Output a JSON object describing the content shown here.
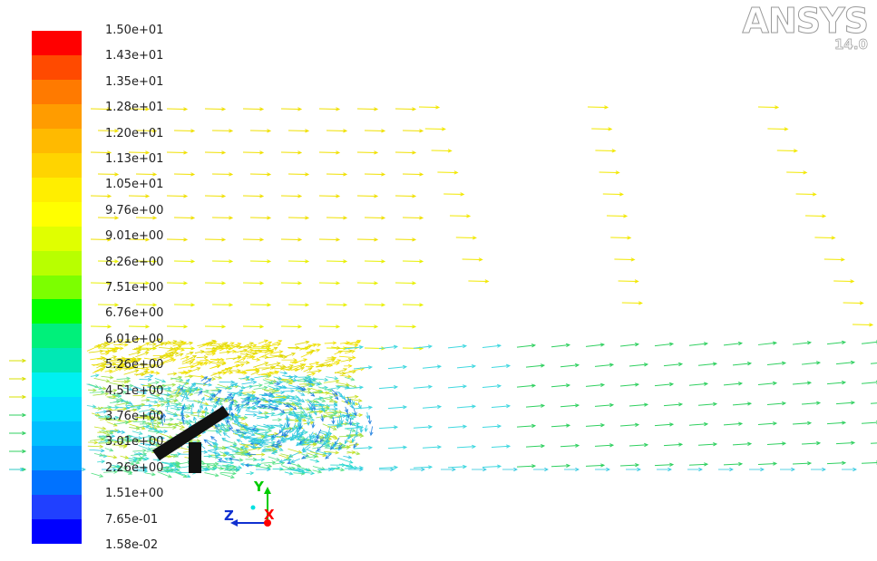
{
  "app": {
    "logo_text": "ANSYS",
    "logo_version": "14.0"
  },
  "legend": {
    "labels": [
      "1.50e+01",
      "1.43e+01",
      "1.35e+01",
      "1.28e+01",
      "1.20e+01",
      "1.13e+01",
      "1.05e+01",
      "9.76e+00",
      "9.01e+00",
      "8.26e+00",
      "7.51e+00",
      "6.76e+00",
      "6.01e+00",
      "5.26e+00",
      "4.51e+00",
      "3.76e+00",
      "3.01e+00",
      "2.26e+00",
      "1.51e+00",
      "7.65e-01",
      "1.58e-02"
    ],
    "colors": [
      "#ff0000",
      "#ff4a00",
      "#ff7a00",
      "#ff9c00",
      "#ffba00",
      "#ffd400",
      "#ffee00",
      "#ffff00",
      "#e0ff00",
      "#b8ff00",
      "#7cff00",
      "#00ff00",
      "#00f07a",
      "#00e8b4",
      "#00f0f0",
      "#00d8ff",
      "#00bfff",
      "#00a0ff",
      "#0072ff",
      "#2040ff",
      "#0000ff"
    ]
  },
  "triad": {
    "y_label": "Y",
    "z_label": "Z",
    "x_label": "X",
    "y_color": "#00cc00",
    "z_color": "#1030d0",
    "x_color": "#ff0000"
  },
  "scene": {
    "description_colors": {
      "high": "#e8e800",
      "mid": "#50e0c0",
      "low": "#20c020",
      "body": "#111111"
    }
  }
}
